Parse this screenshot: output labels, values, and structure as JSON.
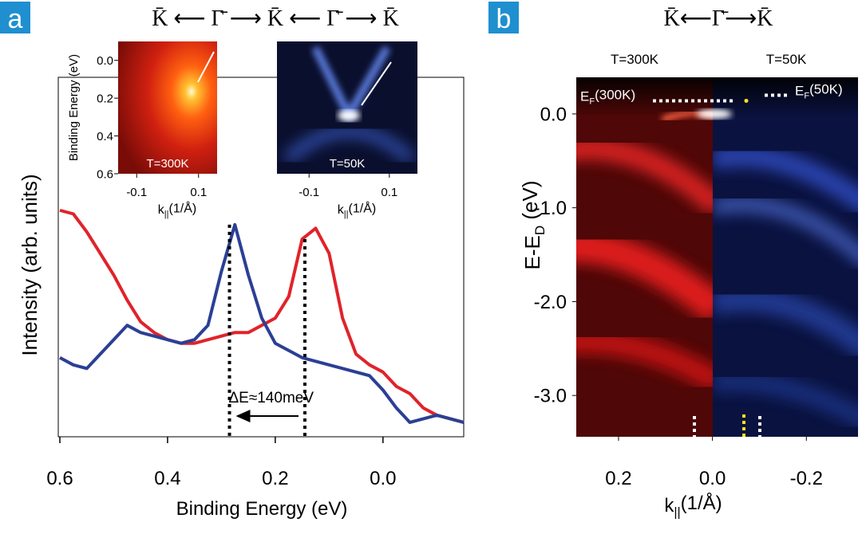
{
  "chart_data": [
    {
      "type": "line",
      "panel": "a",
      "header": "K̄ ⟵ Γ̄ ⟶ K̄ ⟵ Γ̄ ⟶ K̄",
      "xlabel": "Binding Energy (eV)",
      "ylabel": "Intensity (arb. units)",
      "x": [
        0.6,
        0.575,
        0.55,
        0.525,
        0.5,
        0.475,
        0.45,
        0.425,
        0.4,
        0.375,
        0.35,
        0.325,
        0.3,
        0.275,
        0.25,
        0.225,
        0.2,
        0.175,
        0.15,
        0.125,
        0.1,
        0.075,
        0.05,
        0.025,
        0.0,
        -0.025,
        -0.05,
        -0.075,
        -0.1,
        -0.125,
        -0.15
      ],
      "series": [
        {
          "color": "#e0232a",
          "values": [
            0.63,
            0.62,
            0.57,
            0.51,
            0.45,
            0.38,
            0.32,
            0.29,
            0.27,
            0.26,
            0.26,
            0.27,
            0.28,
            0.29,
            0.29,
            0.31,
            0.33,
            0.39,
            0.55,
            0.58,
            0.51,
            0.33,
            0.23,
            0.2,
            0.18,
            0.14,
            0.12,
            0.08,
            0.06,
            0.05,
            0.04
          ]
        },
        {
          "color": "#2b3f95",
          "values": [
            0.22,
            0.2,
            0.19,
            0.23,
            0.27,
            0.31,
            0.29,
            0.28,
            0.27,
            0.26,
            0.27,
            0.31,
            0.46,
            0.59,
            0.45,
            0.33,
            0.26,
            0.24,
            0.22,
            0.21,
            0.2,
            0.19,
            0.18,
            0.17,
            0.13,
            0.08,
            0.04,
            0.05,
            0.06,
            0.05,
            0.04
          ]
        }
      ],
      "xlim": [
        0.6,
        -0.15
      ],
      "ylim": [
        0,
        1
      ],
      "xticks": [
        0.6,
        0.4,
        0.2,
        {
          "value": 0,
          "label": "0.0"
        }
      ],
      "vlines": [
        0.285,
        0.145
      ],
      "annotation": "ΔE≈140meV"
    },
    {
      "type": "heatmap",
      "colormap": "red",
      "title": "T=300K",
      "xlabel": [
        "k",
        "||",
        "(1/Å)"
      ],
      "ylabel": "Binding Energy (eV)",
      "xlim": [
        -0.16,
        0.16
      ],
      "ylim": [
        0.6,
        -0.1
      ],
      "xticks": [
        -0.1,
        0.1
      ],
      "yticks": [
        {
          "value": 0,
          "label": "0.0"
        },
        0.2,
        0.4,
        0.6
      ]
    },
    {
      "type": "heatmap",
      "colormap": "blue",
      "title": "T=50K",
      "xlabel": [
        "k",
        "||",
        "(1/Å)"
      ],
      "xlim": [
        -0.18,
        0.17
      ],
      "ylim": [
        0.6,
        -0.1
      ],
      "xticks": [
        -0.1,
        0.1
      ]
    },
    {
      "type": "heatmap",
      "colormap": "split",
      "panel": "b",
      "header": "K̄⟵Γ̄⟶K̄",
      "titles": [
        "T=300K",
        "T=50K"
      ],
      "xlabel": [
        "k",
        "||",
        "(1/Å)"
      ],
      "ylabel": [
        "E-E",
        "D",
        " (eV)"
      ],
      "xlim": [
        0.29,
        -0.31
      ],
      "ylim": [
        -3.44,
        0.39
      ],
      "xticks": [
        0.2,
        {
          "value": 0,
          "label": "0.0"
        },
        -0.2
      ],
      "yticks": [
        {
          "value": 0,
          "label": "0.0"
        },
        {
          "value": -1,
          "label": "-1.0"
        },
        {
          "value": -2,
          "label": "-2.0"
        },
        {
          "value": -3,
          "label": "-3.0"
        }
      ],
      "fermi_level": 0.14,
      "annotations": [
        [
          "E",
          "F",
          "(300K)"
        ],
        [
          "E",
          "F",
          "(50K)"
        ]
      ]
    }
  ]
}
